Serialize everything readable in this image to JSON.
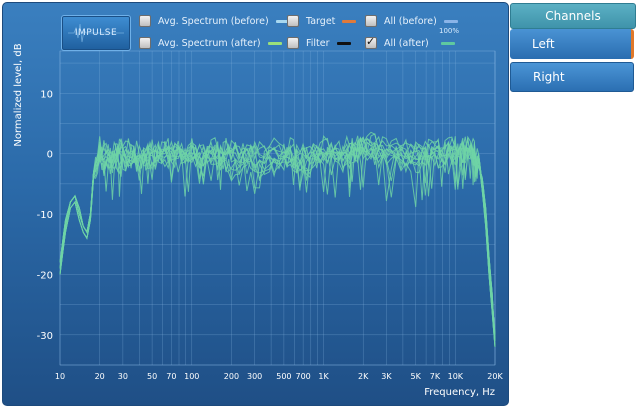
{
  "toolbar": {
    "impulse_label": "IMPULSE"
  },
  "legend": [
    {
      "label": "Avg. Spectrum (before)",
      "checked": false,
      "color": "#a8d8f0"
    },
    {
      "label": "Target",
      "checked": false,
      "color": "#e07a3a"
    },
    {
      "label": "All (before)",
      "checked": false,
      "color": "#8ab4e8"
    },
    {
      "label": "Avg. Spectrum (after)",
      "checked": false,
      "color": "#9be07a"
    },
    {
      "label": "Filter",
      "checked": false,
      "color": "#111111"
    },
    {
      "label": "All (after)",
      "checked": true,
      "color": "#5fc9a0"
    }
  ],
  "all_before_percent": "100%",
  "sidebar": {
    "header": "Channels",
    "items": [
      {
        "label": "Left",
        "active": true
      },
      {
        "label": "Right",
        "active": false
      }
    ]
  },
  "colors": {
    "curve": "#6fd3a6",
    "accent": "#e0782a",
    "panel": "#2b6aa9"
  },
  "chart_data": {
    "type": "line",
    "ylabel": "Normalized level, dB",
    "xlabel": "Frequency, Hz",
    "x_scale": "log",
    "xlim": [
      10,
      20000
    ],
    "ylim": [
      -35,
      17
    ],
    "y_ticks": [
      10,
      0,
      -10,
      -20,
      -30
    ],
    "x_ticks": [
      {
        "value": 10,
        "label": "10"
      },
      {
        "value": 20,
        "label": "20"
      },
      {
        "value": 30,
        "label": "30"
      },
      {
        "value": 50,
        "label": "50"
      },
      {
        "value": 70,
        "label": "70"
      },
      {
        "value": 100,
        "label": "100"
      },
      {
        "value": 200,
        "label": "200"
      },
      {
        "value": 300,
        "label": "300"
      },
      {
        "value": 500,
        "label": "500"
      },
      {
        "value": 700,
        "label": "700"
      },
      {
        "value": 1000,
        "label": "1K"
      },
      {
        "value": 2000,
        "label": "2K"
      },
      {
        "value": 3000,
        "label": "3K"
      },
      {
        "value": 5000,
        "label": "5K"
      },
      {
        "value": 7000,
        "label": "7K"
      },
      {
        "value": 10000,
        "label": "10K"
      },
      {
        "value": 20000,
        "label": "20K"
      }
    ],
    "grid": true,
    "series": [
      {
        "x": [
          10,
          11,
          12,
          13,
          14,
          15,
          16,
          17,
          18,
          20,
          25,
          30,
          40,
          50,
          70,
          100,
          150,
          200,
          300,
          500,
          700,
          1000,
          1500,
          2000,
          3000,
          5000,
          7000,
          10000,
          13000,
          15000,
          16000,
          17000,
          18000,
          19000,
          20000
        ],
        "y": [
          -18,
          -11,
          -8,
          -7,
          -10,
          -12,
          -13,
          -10,
          -3,
          1,
          0,
          1,
          0,
          1,
          -1,
          1,
          0,
          1,
          0,
          1,
          0,
          1,
          0,
          2,
          1,
          0,
          1,
          1,
          1,
          0,
          -5,
          -10,
          -18,
          -24,
          -30
        ]
      },
      {
        "x": [
          10,
          11,
          12,
          13,
          14,
          15,
          16,
          17,
          18,
          20,
          25,
          30,
          40,
          50,
          70,
          100,
          150,
          200,
          300,
          500,
          700,
          1000,
          1500,
          2000,
          3000,
          5000,
          7000,
          10000,
          13000,
          15000,
          16000,
          17000,
          18000,
          19000,
          20000
        ],
        "y": [
          -20,
          -13,
          -9,
          -8,
          -11,
          -13,
          -14,
          -11,
          -4,
          0,
          -1,
          0,
          -1,
          0,
          0,
          0,
          -1,
          0,
          -2,
          -1,
          0,
          -1,
          1,
          0,
          0,
          -2,
          0,
          0,
          0,
          -1,
          -6,
          -12,
          -20,
          -26,
          -32
        ]
      },
      {
        "x": [
          10,
          11,
          12,
          13,
          14,
          15,
          16,
          17,
          18,
          20,
          25,
          30,
          40,
          50,
          70,
          100,
          150,
          200,
          300,
          500,
          700,
          1000,
          1500,
          2000,
          3000,
          5000,
          7000,
          10000,
          13000,
          15000,
          16000,
          17000,
          18000,
          19000,
          20000
        ],
        "y": [
          -19,
          -12,
          -8,
          -7,
          -9,
          -12,
          -13,
          -10,
          -3,
          -1,
          -2,
          -1,
          -1,
          -1,
          1,
          -1,
          1,
          -3,
          1,
          0,
          -3,
          0,
          -1,
          1,
          -1,
          0,
          -1,
          1,
          1,
          -2,
          -4,
          -9,
          -17,
          -23,
          -31
        ]
      }
    ]
  }
}
